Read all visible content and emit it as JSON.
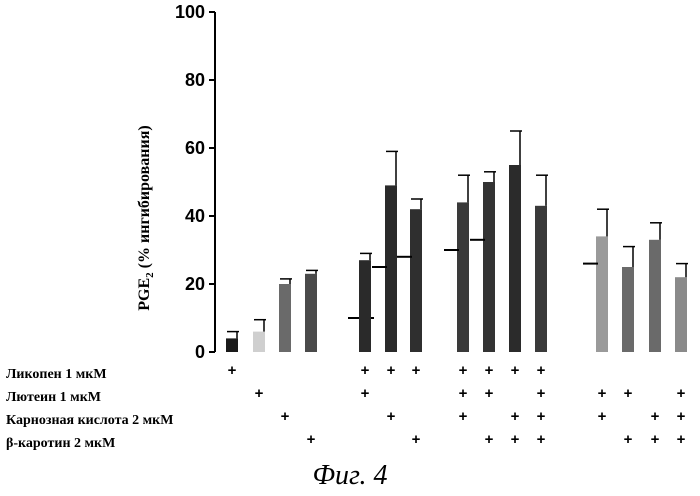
{
  "chart_data": {
    "type": "bar",
    "ylabel": "PGE",
    "ylabel_sub": "2",
    "ylabel_rest": " (% ингибирования)",
    "ylim": [
      0,
      100
    ],
    "yticks": [
      "0",
      "20",
      "40",
      "60",
      "80",
      "100"
    ],
    "ytick_values": [
      0,
      20,
      40,
      60,
      80,
      100
    ],
    "grid": false,
    "caption": "Фиг. 4",
    "row_labels": [
      "Ликопен 1 мкМ",
      "Лютеин 1 мкМ",
      "Карнозная кислота 2 мкМ",
      "β-каротин 2 мкМ"
    ],
    "bars": [
      {
        "value": 4,
        "error": 2,
        "shade": "#1a1a1a",
        "combo": [
          1,
          0,
          0,
          0
        ]
      },
      {
        "value": 6,
        "error": 3.5,
        "shade": "#cfcfcf",
        "combo": [
          0,
          1,
          0,
          0
        ]
      },
      {
        "value": 20,
        "error": 1.5,
        "shade": "#6a6a6a",
        "combo": [
          0,
          0,
          1,
          0
        ]
      },
      {
        "value": 23,
        "error": 1,
        "shade": "#4a4a4a",
        "combo": [
          0,
          0,
          0,
          1
        ]
      },
      {
        "value": 10,
        "error": 0,
        "shade": "#e2e2e2",
        "combo": [
          0,
          0,
          0,
          0
        ],
        "expected": true
      },
      {
        "value": 27,
        "error": 2,
        "shade": "#2a2a2a",
        "combo": [
          1,
          1,
          0,
          0
        ]
      },
      {
        "value": 49,
        "error": 10,
        "shade": "#2a2a2a",
        "combo": [
          1,
          0,
          1,
          0
        ],
        "expected_value": 25
      },
      {
        "value": 42,
        "error": 3,
        "shade": "#2f2f2f",
        "combo": [
          1,
          0,
          0,
          1
        ],
        "expected_value": 28
      },
      {
        "value": 44,
        "error": 8,
        "shade": "#3a3a3a",
        "combo": [
          1,
          1,
          1,
          0
        ],
        "expected_value": 30
      },
      {
        "value": 50,
        "error": 3,
        "shade": "#333333",
        "combo": [
          1,
          1,
          0,
          1
        ],
        "expected_value": 33
      },
      {
        "value": 55,
        "error": 10,
        "shade": "#2b2b2b",
        "combo": [
          1,
          0,
          1,
          1
        ]
      },
      {
        "value": 43,
        "error": 9,
        "shade": "#3a3a3a",
        "combo": [
          1,
          1,
          1,
          1
        ]
      },
      {
        "value": 34,
        "error": 8,
        "shade": "#9a9a9a",
        "combo": [
          0,
          1,
          1,
          0
        ],
        "expected_value": 26
      },
      {
        "value": 25,
        "error": 6,
        "shade": "#6a6a6a",
        "combo": [
          0,
          1,
          0,
          1
        ]
      },
      {
        "value": 33,
        "error": 5,
        "shade": "#6a6a6a",
        "combo": [
          0,
          0,
          1,
          1
        ]
      },
      {
        "value": 22,
        "error": 4,
        "shade": "#8a8a8a",
        "combo": [
          0,
          1,
          1,
          1
        ]
      }
    ]
  }
}
